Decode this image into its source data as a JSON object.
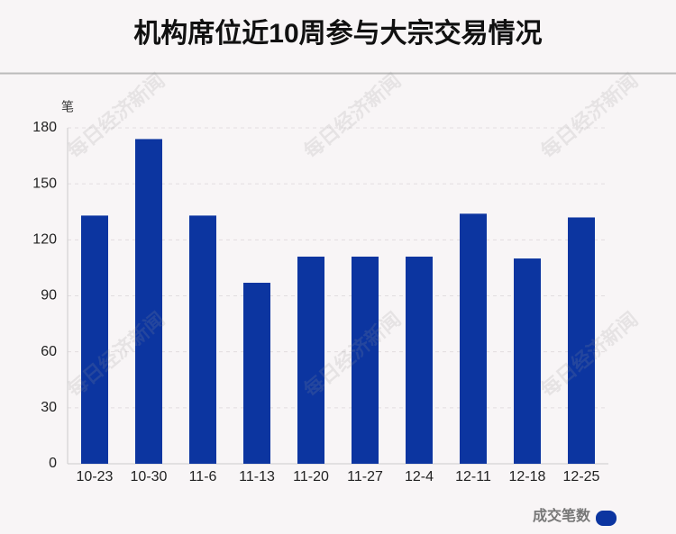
{
  "chart_data": {
    "type": "bar",
    "title": "机构席位近10周参与大宗交易情况",
    "y_label": "笔",
    "categories": [
      "10-23",
      "10-30",
      "11-6",
      "11-13",
      "11-20",
      "11-27",
      "12-4",
      "12-11",
      "12-18",
      "12-25"
    ],
    "series": [
      {
        "name": "成交笔数",
        "color": "#0c35a0",
        "values": [
          133,
          174,
          133,
          97,
          111,
          111,
          111,
          134,
          110,
          132
        ]
      }
    ],
    "ylim": [
      0,
      180
    ],
    "yticks": [
      0,
      30,
      60,
      90,
      120,
      150,
      180
    ],
    "grid": true,
    "legend": "bottom-right",
    "watermark": "每日经济新闻"
  }
}
